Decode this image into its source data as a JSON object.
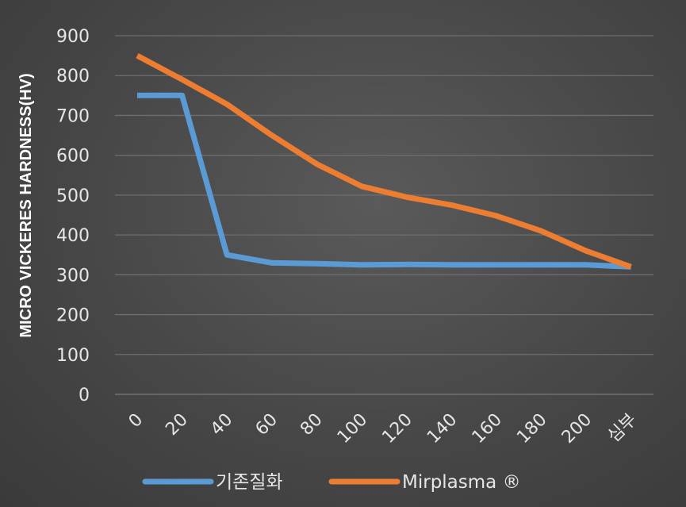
{
  "chart_data": {
    "type": "line",
    "title": "",
    "xlabel": "",
    "ylabel": "MICRO VICKERES HARDNESS(HV)",
    "ylim": [
      0,
      900
    ],
    "yticks": [
      0,
      100,
      200,
      300,
      400,
      500,
      600,
      700,
      800,
      900
    ],
    "categories": [
      "0",
      "20",
      "40",
      "60",
      "80",
      "100",
      "120",
      "140",
      "160",
      "180",
      "200",
      "심부"
    ],
    "grid": true,
    "legend_position": "bottom",
    "series": [
      {
        "name": "기존질화",
        "color": "#5b9bd5",
        "values": [
          750,
          750,
          350,
          330,
          328,
          325,
          326,
          325,
          325,
          325,
          325,
          320
        ]
      },
      {
        "name": "Mirplasma ®",
        "color": "#ed7d31",
        "values": [
          850,
          790,
          728,
          650,
          578,
          522,
          495,
          475,
          448,
          410,
          360,
          320
        ]
      }
    ]
  }
}
